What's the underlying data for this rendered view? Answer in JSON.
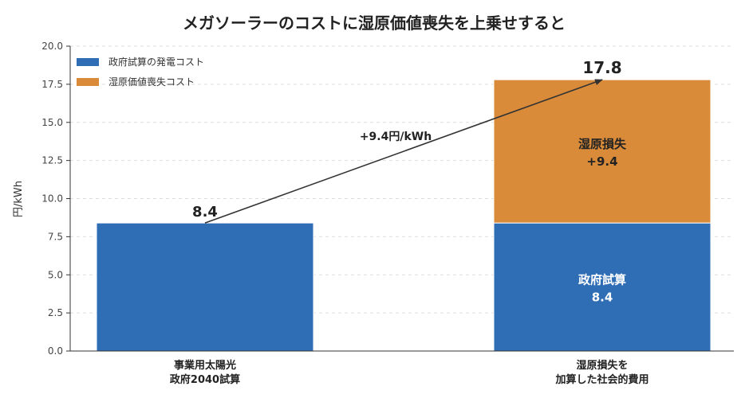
{
  "chart_data": {
    "type": "bar",
    "stacked": true,
    "title": "メガソーラーのコストに湿原価値喪失を上乗せすると",
    "ylabel": "円/kWh",
    "xlabel": "",
    "ylim": [
      0,
      20
    ],
    "yticks": [
      "0.0",
      "2.5",
      "5.0",
      "7.5",
      "10.0",
      "12.5",
      "15.0",
      "17.5",
      "20.0"
    ],
    "grid": "y-dashed",
    "legend_position": "top-left",
    "categories": [
      [
        "事業用太陽光",
        "政府2040試算"
      ],
      [
        "湿原損失を",
        "加算した社会的費用"
      ]
    ],
    "series": [
      {
        "name": "政府試算の発電コスト",
        "color": "#2f6db5",
        "values": [
          8.4,
          8.4
        ],
        "labels": [
          "",
          "政府試算\n8.4"
        ]
      },
      {
        "name": "湿原価値喪失コスト",
        "color": "#d98b3a",
        "values": [
          0,
          9.4
        ],
        "labels": [
          "",
          "湿原損失\n+9.4"
        ]
      }
    ],
    "totals": [
      "8.4",
      "17.8"
    ],
    "annotation": {
      "text": "+9.4円/kWh",
      "from": [
        0,
        8.4
      ],
      "to": [
        1,
        17.8
      ]
    }
  }
}
